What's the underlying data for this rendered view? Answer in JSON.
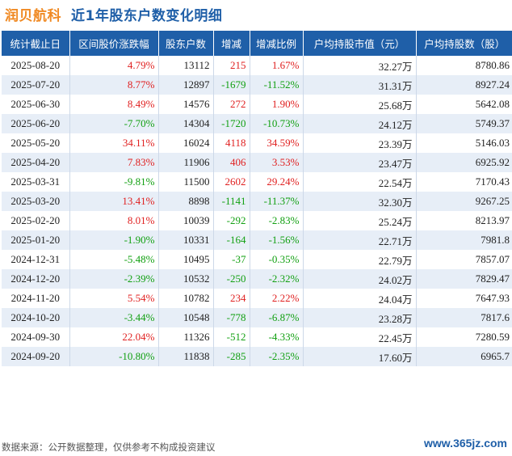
{
  "header": {
    "company": "润贝航科",
    "title": "近1年股东户数变化明细"
  },
  "table": {
    "columns": [
      "统计截止日",
      "区间股价涨跌幅",
      "股东户数",
      "增减",
      "增减比例",
      "户均持股市值（元）",
      "户均持股数（股）"
    ],
    "rows": [
      {
        "date": "2025-08-20",
        "price_change": "4.79%",
        "holders": "13112",
        "change": "215",
        "ratio": "1.67%",
        "avg_value": "32.27",
        "avg_shares": "8780.86"
      },
      {
        "date": "2025-07-20",
        "price_change": "8.77%",
        "holders": "12897",
        "change": "-1679",
        "ratio": "-11.52%",
        "avg_value": "31.31",
        "avg_shares": "8927.24"
      },
      {
        "date": "2025-06-30",
        "price_change": "8.49%",
        "holders": "14576",
        "change": "272",
        "ratio": "1.90%",
        "avg_value": "25.68",
        "avg_shares": "5642.08"
      },
      {
        "date": "2025-06-20",
        "price_change": "-7.70%",
        "holders": "14304",
        "change": "-1720",
        "ratio": "-10.73%",
        "avg_value": "24.12",
        "avg_shares": "5749.37"
      },
      {
        "date": "2025-05-20",
        "price_change": "34.11%",
        "holders": "16024",
        "change": "4118",
        "ratio": "34.59%",
        "avg_value": "23.39",
        "avg_shares": "5146.03"
      },
      {
        "date": "2025-04-20",
        "price_change": "7.83%",
        "holders": "11906",
        "change": "406",
        "ratio": "3.53%",
        "avg_value": "23.47",
        "avg_shares": "6925.92"
      },
      {
        "date": "2025-03-31",
        "price_change": "-9.81%",
        "holders": "11500",
        "change": "2602",
        "ratio": "29.24%",
        "avg_value": "22.54",
        "avg_shares": "7170.43"
      },
      {
        "date": "2025-03-20",
        "price_change": "13.41%",
        "holders": "8898",
        "change": "-1141",
        "ratio": "-11.37%",
        "avg_value": "32.30",
        "avg_shares": "9267.25"
      },
      {
        "date": "2025-02-20",
        "price_change": "8.01%",
        "holders": "10039",
        "change": "-292",
        "ratio": "-2.83%",
        "avg_value": "25.24",
        "avg_shares": "8213.97"
      },
      {
        "date": "2025-01-20",
        "price_change": "-1.90%",
        "holders": "10331",
        "change": "-164",
        "ratio": "-1.56%",
        "avg_value": "22.71",
        "avg_shares": "7981.8"
      },
      {
        "date": "2024-12-31",
        "price_change": "-5.48%",
        "holders": "10495",
        "change": "-37",
        "ratio": "-0.35%",
        "avg_value": "22.79",
        "avg_shares": "7857.07"
      },
      {
        "date": "2024-12-20",
        "price_change": "-2.39%",
        "holders": "10532",
        "change": "-250",
        "ratio": "-2.32%",
        "avg_value": "24.02",
        "avg_shares": "7829.47"
      },
      {
        "date": "2024-11-20",
        "price_change": "5.54%",
        "holders": "10782",
        "change": "234",
        "ratio": "2.22%",
        "avg_value": "24.04",
        "avg_shares": "7647.93"
      },
      {
        "date": "2024-10-20",
        "price_change": "-3.44%",
        "holders": "10548",
        "change": "-778",
        "ratio": "-6.87%",
        "avg_value": "23.28",
        "avg_shares": "7817.6"
      },
      {
        "date": "2024-09-30",
        "price_change": "22.04%",
        "holders": "11326",
        "change": "-512",
        "ratio": "-4.33%",
        "avg_value": "22.45",
        "avg_shares": "7280.59"
      },
      {
        "date": "2024-09-20",
        "price_change": "-10.80%",
        "holders": "11838",
        "change": "-285",
        "ratio": "-2.35%",
        "avg_value": "17.60",
        "avg_shares": "6965.7"
      }
    ],
    "value_unit": "万"
  },
  "footer": {
    "source": "数据来源：公开数据整理，仅供参考不构成投资建议"
  },
  "watermark": "www.365jz.com",
  "colors": {
    "header_blue": "#1f5fa8",
    "company_orange": "#f08a24",
    "up_red": "#e02020",
    "down_green": "#12a012",
    "stripe": "#e7eef7"
  }
}
